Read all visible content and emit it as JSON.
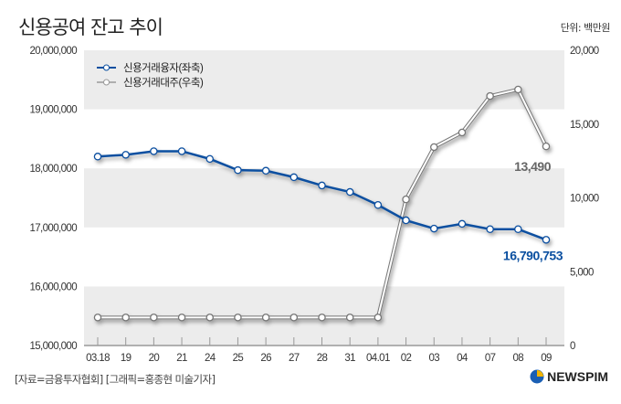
{
  "header": {
    "title": "신용공여 잔고 추이",
    "unit": "단위: 백만원"
  },
  "footer": {
    "source": "[자료=금융투자협회] [그래픽=홍종현 미술기자]",
    "logo": "NEWSPIM"
  },
  "chart_data": {
    "type": "line",
    "title": "신용공여 잔고 추이",
    "categories": [
      "03.18",
      "19",
      "20",
      "21",
      "24",
      "25",
      "26",
      "27",
      "28",
      "31",
      "04.01",
      "02",
      "03",
      "04",
      "07",
      "08",
      "09"
    ],
    "left_axis": {
      "ylim": [
        15000000,
        20000000
      ],
      "ticks": [
        "15,000,000",
        "16,000,000",
        "17,000,000",
        "18,000,000",
        "19,000,000",
        "20,000,000"
      ]
    },
    "right_axis": {
      "ylim": [
        0,
        20000
      ],
      "ticks": [
        "0",
        "5,000",
        "10,000",
        "15,000",
        "20,000"
      ]
    },
    "legend_position": "top-left",
    "series": [
      {
        "name": "신용거래융자(좌축)",
        "axis": "left",
        "color": "#0a4fa0",
        "values": [
          18200000,
          18230000,
          18290000,
          18290000,
          18160000,
          17970000,
          17960000,
          17850000,
          17710000,
          17600000,
          17380000,
          17120000,
          16980000,
          17060000,
          16970000,
          16970000,
          16790753
        ],
        "end_label": "16,790,753"
      },
      {
        "name": "신용거래대주(우축)",
        "axis": "right",
        "color": "#888888",
        "values": [
          1900,
          1900,
          1900,
          1900,
          1900,
          1900,
          1900,
          1900,
          1900,
          1900,
          1900,
          9900,
          13440,
          14430,
          16900,
          17340,
          13490
        ],
        "end_label": "13,490"
      }
    ]
  }
}
